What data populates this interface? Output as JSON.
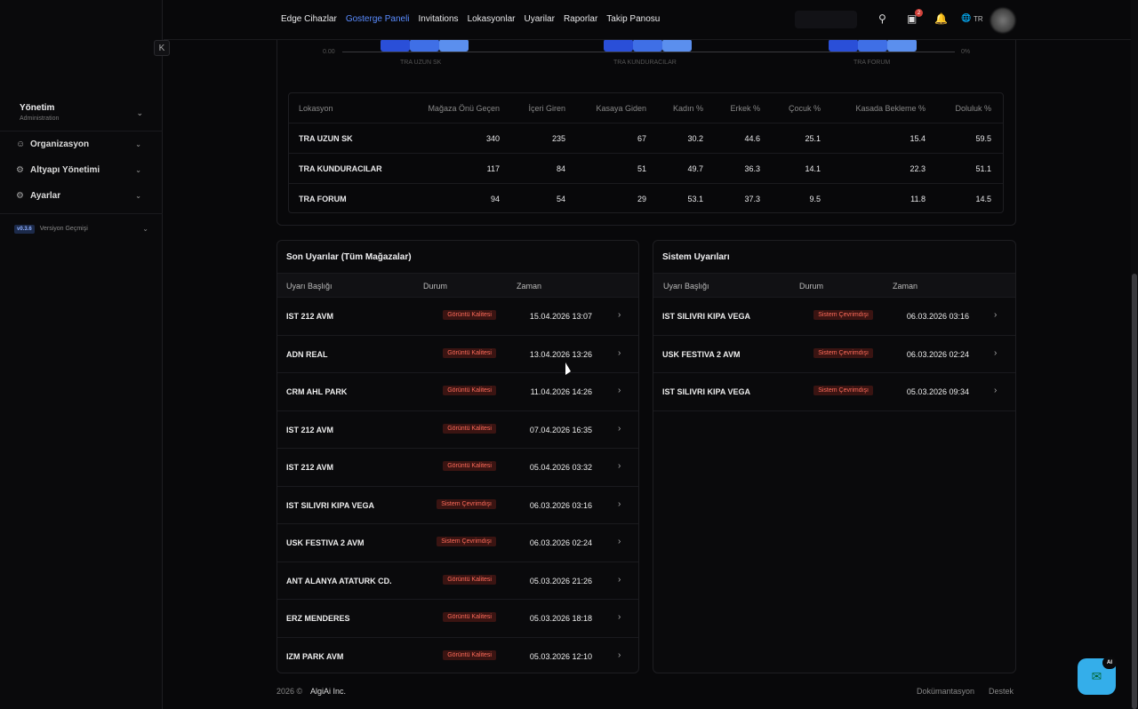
{
  "sidebar": {
    "section_title": "Yönetim",
    "section_subtitle": "Administration",
    "items": [
      {
        "label": "Organizasyon"
      },
      {
        "label": "Altyapı Yönetimi"
      },
      {
        "label": "Ayarlar"
      }
    ],
    "version_badge": "v0.3.6",
    "version_label": "Versiyon Geçmişi",
    "collapse_icon": "K"
  },
  "nav": {
    "items": [
      "Edge Cihazlar",
      "Gosterge Paneli",
      "Invitations",
      "Lokasyonlar",
      "Uyarilar",
      "Raporlar",
      "Takip Panosu"
    ],
    "active_index": 1
  },
  "topbar": {
    "notification_count": "2",
    "language": "TR"
  },
  "chart_top": {
    "left_tick": "0.00",
    "right_tick": "0%",
    "categories": [
      "TRA UZUN SK",
      "TRA KUNDURACILAR",
      "TRA FORUM"
    ],
    "colors": [
      "#2a4fd8",
      "#3f6fe6",
      "#5b8fee"
    ]
  },
  "location_table": {
    "headers": [
      "Lokasyon",
      "Mağaza Önü Geçen",
      "İçeri Giren",
      "Kasaya Giden",
      "Kadın %",
      "Erkek %",
      "Çocuk %",
      "Kasada Bekleme %",
      "Doluluk %"
    ],
    "rows": [
      [
        "TRA UZUN SK",
        "340",
        "235",
        "67",
        "30.2",
        "44.6",
        "25.1",
        "15.4",
        "59.5"
      ],
      [
        "TRA KUNDURACILAR",
        "117",
        "84",
        "51",
        "49.7",
        "36.3",
        "14.1",
        "22.3",
        "51.1"
      ],
      [
        "TRA FORUM",
        "94",
        "54",
        "29",
        "53.1",
        "37.3",
        "9.5",
        "11.8",
        "14.5"
      ]
    ]
  },
  "recent_alerts": {
    "title": "Son Uyarılar (Tüm Mağazalar)",
    "headers": [
      "Uyarı Başlığı",
      "Durum",
      "Zaman"
    ],
    "rows": [
      {
        "name": "IST 212 AVM",
        "status": "Görüntü Kalitesi",
        "time": "15.04.2026 13:07"
      },
      {
        "name": "ADN REAL",
        "status": "Görüntü Kalitesi",
        "time": "13.04.2026 13:26"
      },
      {
        "name": "CRM AHL PARK",
        "status": "Görüntü Kalitesi",
        "time": "11.04.2026 14:26"
      },
      {
        "name": "IST 212 AVM",
        "status": "Görüntü Kalitesi",
        "time": "07.04.2026 16:35"
      },
      {
        "name": "IST 212 AVM",
        "status": "Görüntü Kalitesi",
        "time": "05.04.2026 03:32"
      },
      {
        "name": "IST SILIVRI KIPA VEGA",
        "status": "Sistem Çevrimdışı",
        "time": "06.03.2026 03:16"
      },
      {
        "name": "USK FESTIVA 2 AVM",
        "status": "Sistem Çevrimdışı",
        "time": "06.03.2026 02:24"
      },
      {
        "name": "ANT ALANYA ATATURK CD.",
        "status": "Görüntü Kalitesi",
        "time": "05.03.2026 21:26"
      },
      {
        "name": "ERZ MENDERES",
        "status": "Görüntü Kalitesi",
        "time": "05.03.2026 18:18"
      },
      {
        "name": "IZM PARK AVM",
        "status": "Görüntü Kalitesi",
        "time": "05.03.2026 12:10"
      }
    ]
  },
  "system_alerts": {
    "title": "Sistem Uyarıları",
    "headers": [
      "Uyarı Başlığı",
      "Durum",
      "Zaman"
    ],
    "rows": [
      {
        "name": "IST SILIVRI KIPA VEGA",
        "status": "Sistem Çevrimdışı",
        "time": "06.03.2026 03:16"
      },
      {
        "name": "USK FESTIVA 2 AVM",
        "status": "Sistem Çevrimdışı",
        "time": "06.03.2026 02:24"
      },
      {
        "name": "IST SILIVRI KIPA VEGA",
        "status": "Sistem Çevrimdışı",
        "time": "05.03.2026 09:34"
      }
    ]
  },
  "footer": {
    "year": "2026 ©",
    "company": "AlgiAi Inc.",
    "docs": "Dokümantasyon",
    "support": "Destek"
  },
  "ai_button": {
    "badge": "AI"
  }
}
